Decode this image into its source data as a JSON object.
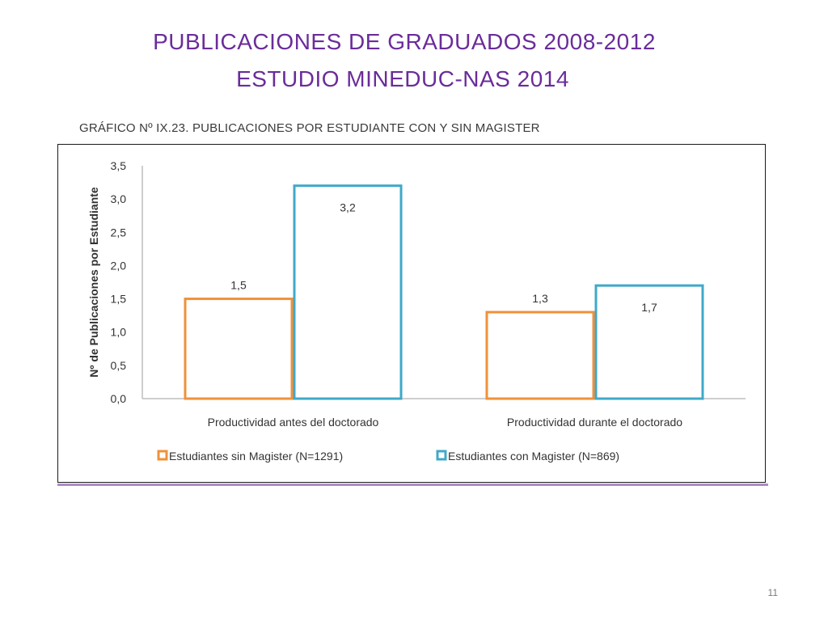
{
  "slide": {
    "title_line1": "PUBLICACIONES DE GRADUADOS 2008-2012",
    "title_line2": "ESTUDIO MINEDUC-NAS 2014",
    "page_number": "11"
  },
  "chart_data": {
    "type": "bar",
    "title": "GRÁFICO Nº IX.23. PUBLICACIONES POR ESTUDIANTE CON Y SIN MAGISTER",
    "categories": [
      "Productividad antes del doctorado",
      "Productividad durante el doctorado"
    ],
    "series": [
      {
        "name": "Estudiantes sin Magister (N=1291)",
        "values": [
          1.5,
          1.3
        ],
        "labels": [
          "1,5",
          "1,3"
        ],
        "color": "#f0913a"
      },
      {
        "name": "Estudiantes con Magister (N=869)",
        "values": [
          3.2,
          1.7
        ],
        "labels": [
          "3,2",
          "1,7"
        ],
        "color": "#3fa9c9"
      }
    ],
    "xlabel": "",
    "ylabel": "Nº de Publicaciones por Estudiante",
    "ylim": [
      0,
      3.5
    ],
    "yticks": [
      0,
      0.5,
      1.0,
      1.5,
      2.0,
      2.5,
      3.0,
      3.5
    ],
    "ytick_labels": [
      "0,0",
      "0,5",
      "1,0",
      "1,5",
      "2,0",
      "2,5",
      "3,0",
      "3,5"
    ],
    "grid": false,
    "legend_position": "bottom"
  }
}
